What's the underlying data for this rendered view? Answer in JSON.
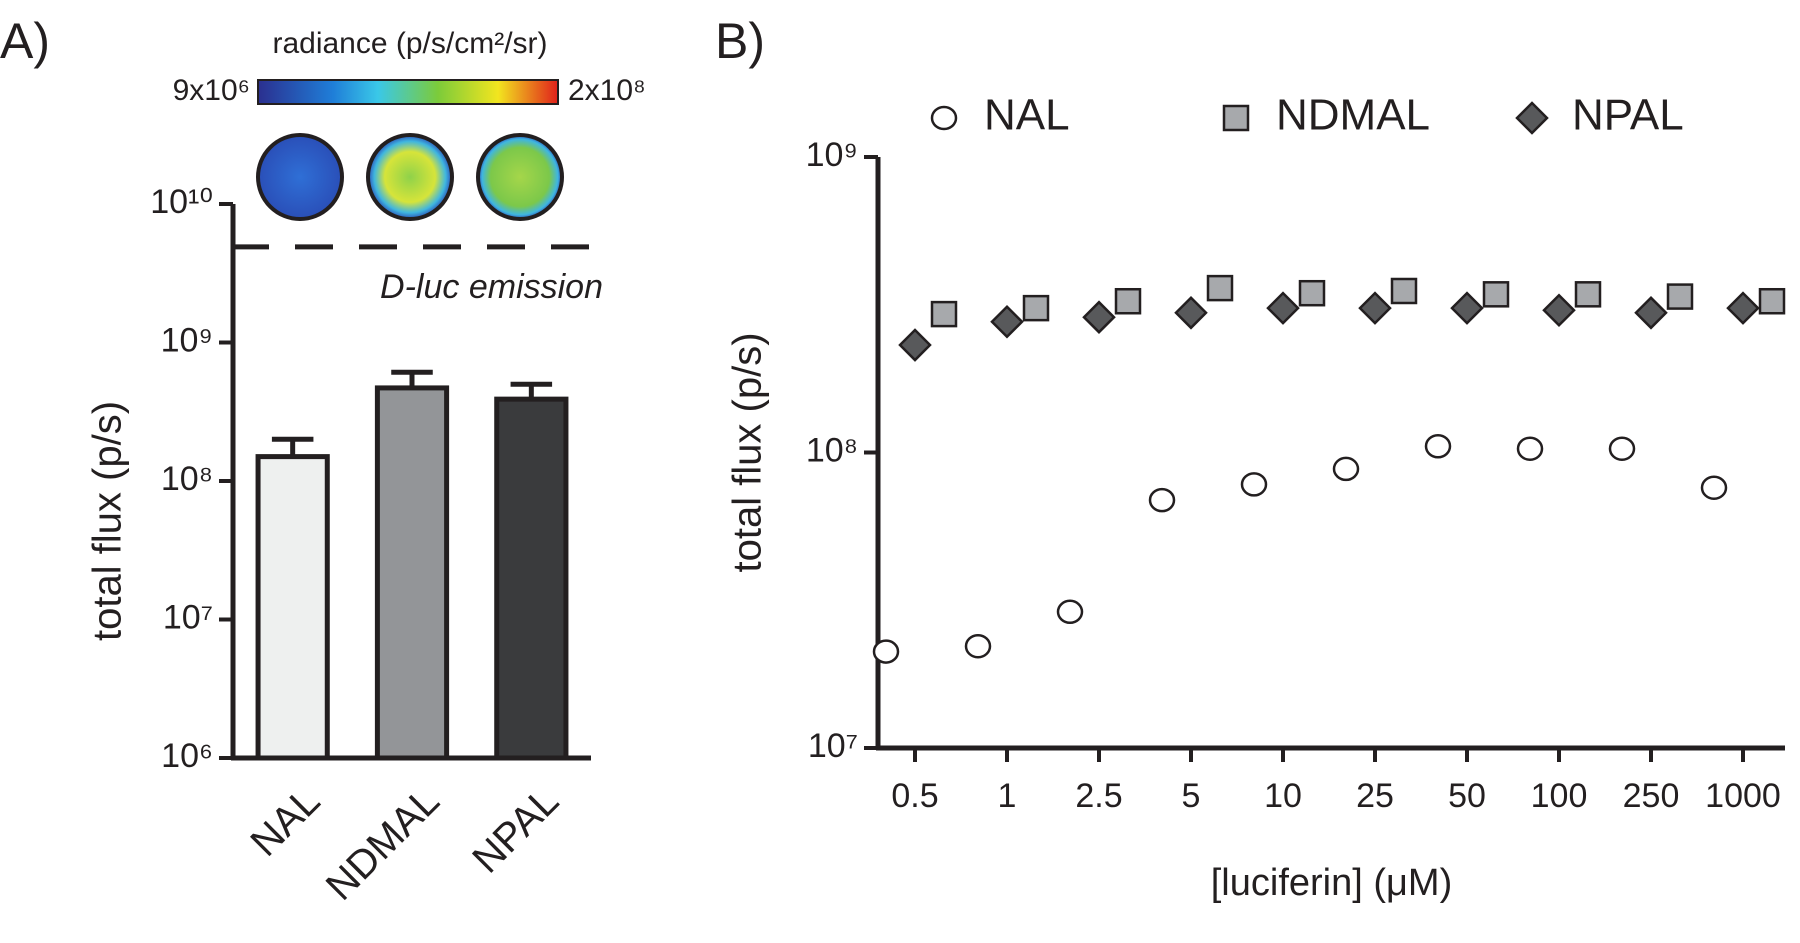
{
  "chart_data": [
    {
      "type": "bar",
      "panel_label": "A)",
      "ylabel": "total flux (p/s)",
      "yscale": "log",
      "categories": [
        "NAL",
        "NDMAL",
        "NPAL"
      ],
      "values": [
        150000000,
        470000000,
        390000000
      ],
      "errors": [
        50000000,
        140000000,
        110000000
      ],
      "colors": [
        "#eef0ef",
        "#939598",
        "#3a3b3d"
      ],
      "ylim": [
        1000000,
        10000000000
      ],
      "yticks": [
        {
          "value": 1000000,
          "label": "10⁶"
        },
        {
          "value": 10000000,
          "label": "10⁷"
        },
        {
          "value": 100000000,
          "label": "10⁸"
        },
        {
          "value": 1000000000,
          "label": "10⁹"
        },
        {
          "value": 10000000000,
          "label": "10¹⁰"
        }
      ],
      "reference_line": {
        "value": 4900000000,
        "label": "D-luc emission"
      },
      "colorbar": {
        "label": "radiance (p/s/cm²/sr)",
        "min_label": "9x10⁶",
        "max_label": "2x10⁸"
      }
    },
    {
      "type": "scatter",
      "panel_label": "B)",
      "ylabel": "total flux (p/s)",
      "xlabel": "[luciferin] (μM)",
      "yscale": "log",
      "categories": [
        "0.5",
        "1",
        "2.5",
        "5",
        "10",
        "25",
        "50",
        "100",
        "250",
        "1000"
      ],
      "series": [
        {
          "name": "NAL",
          "color": "#ffffff",
          "marker": "circle",
          "values": [
            21200000,
            22100000,
            28900000,
            69000000,
            78000000,
            88000000,
            105000000,
            103000000,
            103000000,
            76000000
          ]
        },
        {
          "name": "NDMAL",
          "color": "#a7a9ac",
          "marker": "square",
          "values": [
            294000000,
            308000000,
            325000000,
            360000000,
            346000000,
            352000000,
            343000000,
            343000000,
            337000000,
            325000000
          ]
        },
        {
          "name": "NPAL",
          "color": "#58595b",
          "marker": "diamond",
          "values": [
            231000000,
            277000000,
            287000000,
            297000000,
            308000000,
            308000000,
            308000000,
            303000000,
            297000000,
            308000000
          ]
        }
      ],
      "ylim": [
        10000000,
        1000000000
      ],
      "yticks": [
        {
          "value": 10000000,
          "label": "10⁷"
        },
        {
          "value": 100000000,
          "label": "10⁸"
        },
        {
          "value": 1000000000,
          "label": "10⁹"
        }
      ]
    }
  ]
}
